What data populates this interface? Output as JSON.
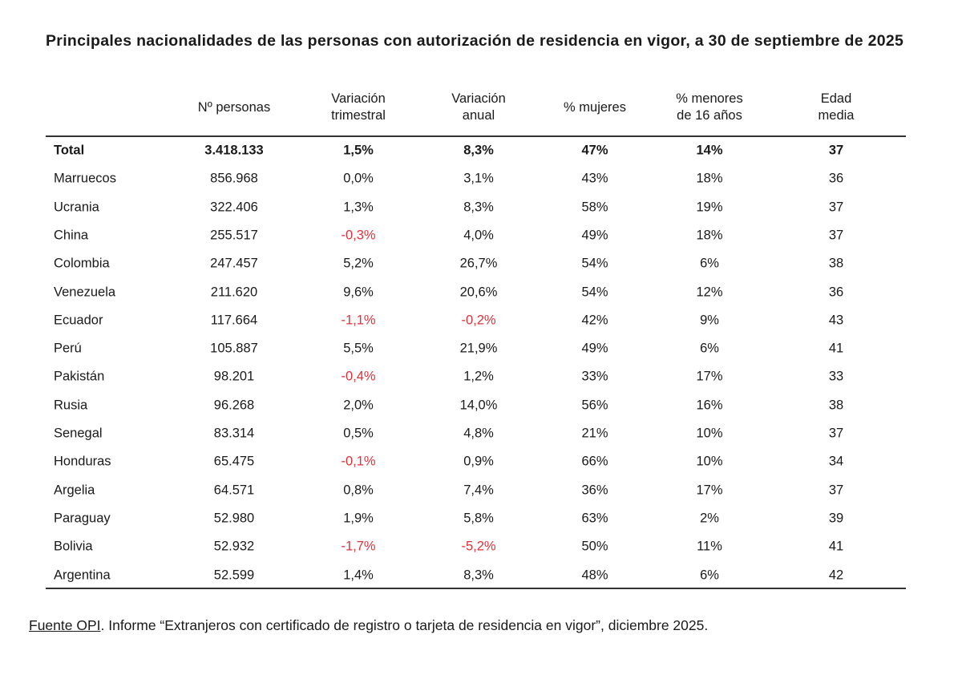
{
  "title": "Principales nacionalidades de las personas con autorización de residencia en vigor, a 30 de septiembre de 2025",
  "table": {
    "header": [
      [
        "Nº personas"
      ],
      [
        "Variación",
        "trimestral"
      ],
      [
        "Variación",
        "anual"
      ],
      [
        "% mujeres"
      ],
      [
        "% menores",
        "de 16 años"
      ],
      [
        "Edad",
        "media"
      ]
    ],
    "rows": [
      [
        "Total",
        "3.418.133",
        "1,5%",
        "8,3%",
        "47%",
        "14%",
        "37"
      ],
      [
        "Marruecos",
        "856.968",
        "0,0%",
        "3,1%",
        "43%",
        "18%",
        "36"
      ],
      [
        "Ucrania",
        "322.406",
        "1,3%",
        "8,3%",
        "58%",
        "19%",
        "37"
      ],
      [
        "China",
        "255.517",
        "-0,3%",
        "4,0%",
        "49%",
        "18%",
        "37"
      ],
      [
        "Colombia",
        "247.457",
        "5,2%",
        "26,7%",
        "54%",
        "6%",
        "38"
      ],
      [
        "Venezuela",
        "211.620",
        "9,6%",
        "20,6%",
        "54%",
        "12%",
        "36"
      ],
      [
        "Ecuador",
        "117.664",
        "-1,1%",
        "-0,2%",
        "42%",
        "9%",
        "43"
      ],
      [
        "Perú",
        "105.887",
        "5,5%",
        "21,9%",
        "49%",
        "6%",
        "41"
      ],
      [
        "Pakistán",
        "98.201",
        "-0,4%",
        "1,2%",
        "33%",
        "17%",
        "33"
      ],
      [
        "Rusia",
        "96.268",
        "2,0%",
        "14,0%",
        "56%",
        "16%",
        "38"
      ],
      [
        "Senegal",
        "83.314",
        "0,5%",
        "4,8%",
        "21%",
        "10%",
        "37"
      ],
      [
        "Honduras",
        "65.475",
        "-0,1%",
        "0,9%",
        "66%",
        "10%",
        "34"
      ],
      [
        "Argelia",
        "64.571",
        "0,8%",
        "7,4%",
        "36%",
        "17%",
        "37"
      ],
      [
        "Paraguay",
        "52.980",
        "1,9%",
        "5,8%",
        "63%",
        "2%",
        "39"
      ],
      [
        "Bolivia",
        "52.932",
        "-1,7%",
        "-5,2%",
        "50%",
        "11%",
        "41"
      ],
      [
        "Argentina",
        "52.599",
        "1,4%",
        "8,3%",
        "48%",
        "6%",
        "42"
      ]
    ]
  },
  "source": {
    "link": "Fuente OPI",
    "text": ". Informe “Extranjeros con certificado de registro o tarjeta de residencia en vigor”, diciembre 2025."
  }
}
